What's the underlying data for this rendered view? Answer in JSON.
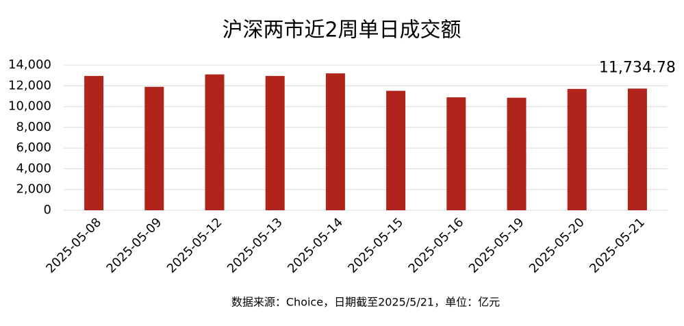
{
  "chart_data": {
    "type": "bar",
    "title": "沪深两市近2周单日成交额",
    "categories": [
      "2025-05-08",
      "2025-05-09",
      "2025-05-12",
      "2025-05-13",
      "2025-05-14",
      "2025-05-15",
      "2025-05-16",
      "2025-05-19",
      "2025-05-20",
      "2025-05-21"
    ],
    "values": [
      12950,
      11900,
      13100,
      12950,
      13200,
      11520,
      10890,
      10850,
      11700,
      11734.78
    ],
    "value_labels": [
      null,
      null,
      null,
      null,
      null,
      null,
      null,
      null,
      null,
      "11,734.78"
    ],
    "color": "#b0241c",
    "ylim": [
      0,
      14000
    ],
    "yticks": [
      0,
      {
        "value": 2000,
        "label": "2,000"
      },
      {
        "value": 4000,
        "label": "4,000"
      },
      {
        "value": 6000,
        "label": "6,000"
      },
      {
        "value": 8000,
        "label": "8,000"
      },
      {
        "value": 10000,
        "label": "10,000"
      },
      {
        "value": 12000,
        "label": "12,000"
      },
      {
        "value": 14000,
        "label": "14,000"
      }
    ],
    "grid": true,
    "note": "数据来源：Choice，日期截至2025/5/21，单位：亿元"
  }
}
